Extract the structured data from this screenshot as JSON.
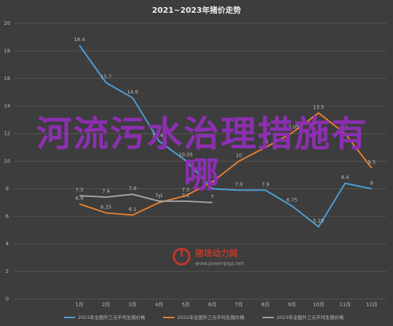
{
  "chart_data": {
    "type": "line",
    "title": "2021~2023年猪价走势",
    "categories": [
      "1月",
      "2月",
      "3月",
      "4月",
      "5月",
      "6月",
      "7月",
      "8月",
      "9月",
      "10月",
      "11月",
      "12月"
    ],
    "series": [
      {
        "name": "2021年全国外三元平均生猪价格",
        "color": "#4e9fd8",
        "values": [
          18.4,
          15.7,
          14.6,
          11.45,
          10.05,
          8,
          7.9,
          7.9,
          6.75,
          5.25,
          8.4,
          8
        ]
      },
      {
        "name": "2022年全国外三元平均生猪价格",
        "color": "#e8802e",
        "values": [
          6.9,
          6.25,
          6.1,
          7,
          7.5,
          8.5,
          10,
          11,
          12.05,
          13.5,
          12,
          9.5
        ]
      },
      {
        "name": "2023年全国外三元平均生猪价格",
        "color": "#a5a5a5",
        "values": [
          7.5,
          7.4,
          7.6,
          7.1,
          7.1,
          7,
          null,
          null,
          null,
          null,
          null,
          null
        ]
      }
    ],
    "ylim": [
      0,
      20
    ],
    "yticks": [
      0,
      2,
      4,
      6,
      8,
      10,
      12,
      14,
      16,
      18,
      20
    ],
    "grid": true,
    "legend": "bottom"
  },
  "overlay_text": "河流污水治理措施有哪",
  "watermark": "猪场动力网",
  "watermark_url": "www.powerpigs.net"
}
